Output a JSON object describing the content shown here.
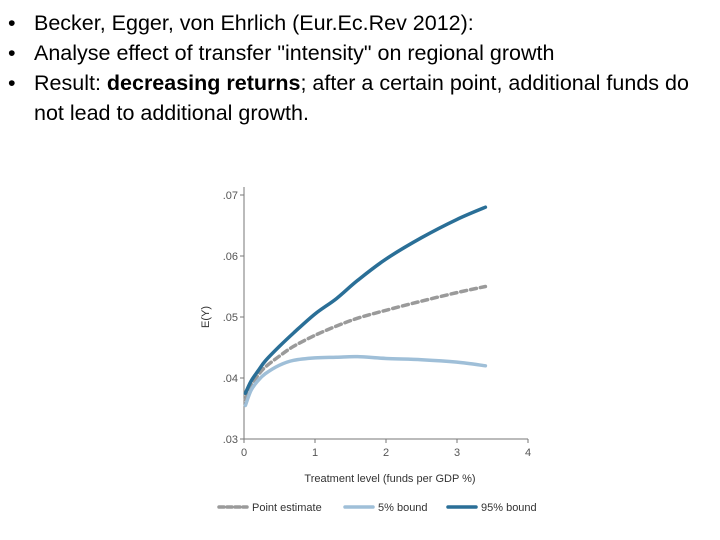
{
  "slide": {
    "bullets": [
      {
        "text": "Becker, Egger, von Ehrlich (Eur.Ec.Rev 2012):"
      },
      {
        "text": "Analyse effect of transfer \"intensity\" on regional growth"
      },
      {
        "prefix": "Result: ",
        "bold": "decreasing returns",
        "suffix": "; after a certain point, additional funds do not lead to additional growth."
      }
    ]
  },
  "chart_data": {
    "type": "line",
    "title": "",
    "xlabel": "Treatment level (funds per GDP %)",
    "ylabel": "E(Y)",
    "xlim": [
      0,
      4
    ],
    "ylim": [
      0.03,
      0.07
    ],
    "xticks": [
      0,
      1,
      2,
      3,
      4
    ],
    "xtick_labels": [
      "0",
      "1",
      "2",
      "3",
      "4"
    ],
    "yticks": [
      0.03,
      0.04,
      0.05,
      0.06,
      0.07
    ],
    "ytick_labels": [
      ".03",
      ".04",
      ".05",
      ".06",
      ".07"
    ],
    "grid": false,
    "legend_position": "bottom",
    "x": [
      0.02,
      0.1,
      0.2,
      0.3,
      0.5,
      0.7,
      1.0,
      1.3,
      1.6,
      2.0,
      2.5,
      3.0,
      3.4
    ],
    "series": [
      {
        "name": "Point estimate",
        "style": "dashed",
        "color": "#9a9a9a",
        "values": [
          0.0365,
          0.0388,
          0.0405,
          0.0418,
          0.0436,
          0.0452,
          0.047,
          0.0485,
          0.0498,
          0.0511,
          0.0526,
          0.054,
          0.055
        ]
      },
      {
        "name": "5% bound",
        "style": "solid",
        "color": "#9fbfd8",
        "values": [
          0.0355,
          0.038,
          0.0396,
          0.0407,
          0.0421,
          0.0429,
          0.0433,
          0.0434,
          0.0435,
          0.0432,
          0.043,
          0.0426,
          0.042
        ]
      },
      {
        "name": "95% bound",
        "style": "solid",
        "color": "#2a6f97",
        "values": [
          0.0375,
          0.0395,
          0.0412,
          0.0428,
          0.0452,
          0.0474,
          0.0505,
          0.053,
          0.056,
          0.0595,
          0.063,
          0.066,
          0.068
        ]
      }
    ]
  }
}
